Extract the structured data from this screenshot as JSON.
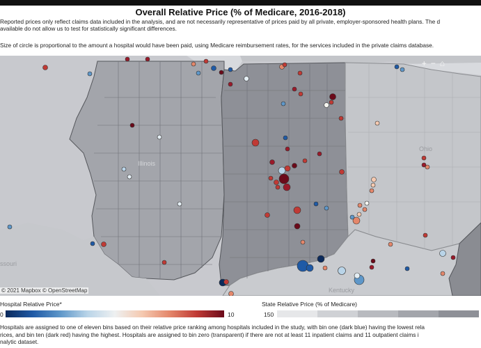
{
  "title": "Overall Relative Price (% of Medicare, 2016-2018)",
  "notes": {
    "line1": "Reported prices only reflect claims data included in the analysis, and are not necessarily representative of prices paid by all private, employer-sponsored health plans. The d",
    "line2": "available do not allow us to test for statistically significant differences.",
    "line3": "Size of circle is proportional to the amount a hospital would have been paid, using Medicare reimbursement rates, for the services included in the private claims database."
  },
  "map": {
    "state_labels": {
      "illinois": "Illinois",
      "ohio": "Ohio",
      "kentucky": "Kentucky",
      "missouri": "ssouri"
    },
    "attribution": "© 2021 Mapbox  © OpenStreetMap",
    "controls": {
      "zoom_in": "+",
      "zoom_out": "−",
      "home": "⌂"
    },
    "colors": {
      "water": "#d8dade",
      "land": "#c8c9ce",
      "illinois": "#a3a5ab",
      "indiana": "#8e9097",
      "michigan": "#c3c5c9",
      "ohio": "#c4c6ca",
      "kentucky": "#c9cbcf",
      "east": "#8a8c92"
    }
  },
  "legend": {
    "hospital_title": "Hospital Relative Price*",
    "hospital_min": "0",
    "hospital_max": "10",
    "state_title": "State Relative Price (% of Medicare)",
    "state_min": "150",
    "state_colors": [
      "#e6e7e9",
      "#cfd1d5",
      "#b8babf",
      "#a3a5ab",
      "#8e9097"
    ]
  },
  "footer": {
    "line1": "Hospitals are assigned to one of eleven bins based on their relative price ranking among hospitals included in the study, with bin one (dark blue) having the lowest rela",
    "line2": "rices, and bin ten (dark red) having the highest. Hospitals are assigned to bin zero (transparent) if there are not at least 11 inpatient claims and 11 outpatient claims i",
    "line3": "nalytic dataset."
  },
  "bin_colors": [
    "#0b2a5c",
    "#1f5aa6",
    "#5e97c9",
    "#b9d4e8",
    "#e4eef4",
    "#f5c9b0",
    "#e4876b",
    "#c03a35",
    "#9a1a2a",
    "#6b0a1a"
  ]
}
